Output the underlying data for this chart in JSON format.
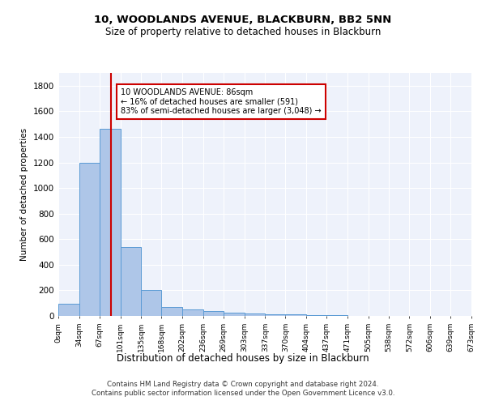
{
  "title": "10, WOODLANDS AVENUE, BLACKBURN, BB2 5NN",
  "subtitle": "Size of property relative to detached houses in Blackburn",
  "xlabel": "Distribution of detached houses by size in Blackburn",
  "ylabel": "Number of detached properties",
  "bar_color": "#aec6e8",
  "bar_edge_color": "#5b9bd5",
  "background_color": "#eef2fb",
  "grid_color": "#ffffff",
  "annotation_box_color": "#cc0000",
  "vline_color": "#cc0000",
  "vline_x": 86,
  "annotation_text": "10 WOODLANDS AVENUE: 86sqm\n← 16% of detached houses are smaller (591)\n83% of semi-detached houses are larger (3,048) →",
  "footer_line1": "Contains HM Land Registry data © Crown copyright and database right 2024.",
  "footer_line2": "Contains public sector information licensed under the Open Government Licence v3.0.",
  "bin_edges": [
    0,
    34,
    67,
    101,
    135,
    168,
    202,
    236,
    269,
    303,
    337,
    370,
    404,
    437,
    471,
    505,
    538,
    572,
    606,
    639,
    673
  ],
  "bin_labels": [
    "0sqm",
    "34sqm",
    "67sqm",
    "101sqm",
    "135sqm",
    "168sqm",
    "202sqm",
    "236sqm",
    "269sqm",
    "303sqm",
    "337sqm",
    "370sqm",
    "404sqm",
    "437sqm",
    "471sqm",
    "505sqm",
    "538sqm",
    "572sqm",
    "606sqm",
    "639sqm",
    "673sqm"
  ],
  "counts": [
    95,
    1200,
    1460,
    540,
    205,
    70,
    48,
    37,
    25,
    22,
    15,
    10,
    8,
    5,
    3,
    2,
    2,
    1,
    1,
    1
  ],
  "ylim": [
    0,
    1900
  ],
  "yticks": [
    0,
    200,
    400,
    600,
    800,
    1000,
    1200,
    1400,
    1600,
    1800
  ]
}
